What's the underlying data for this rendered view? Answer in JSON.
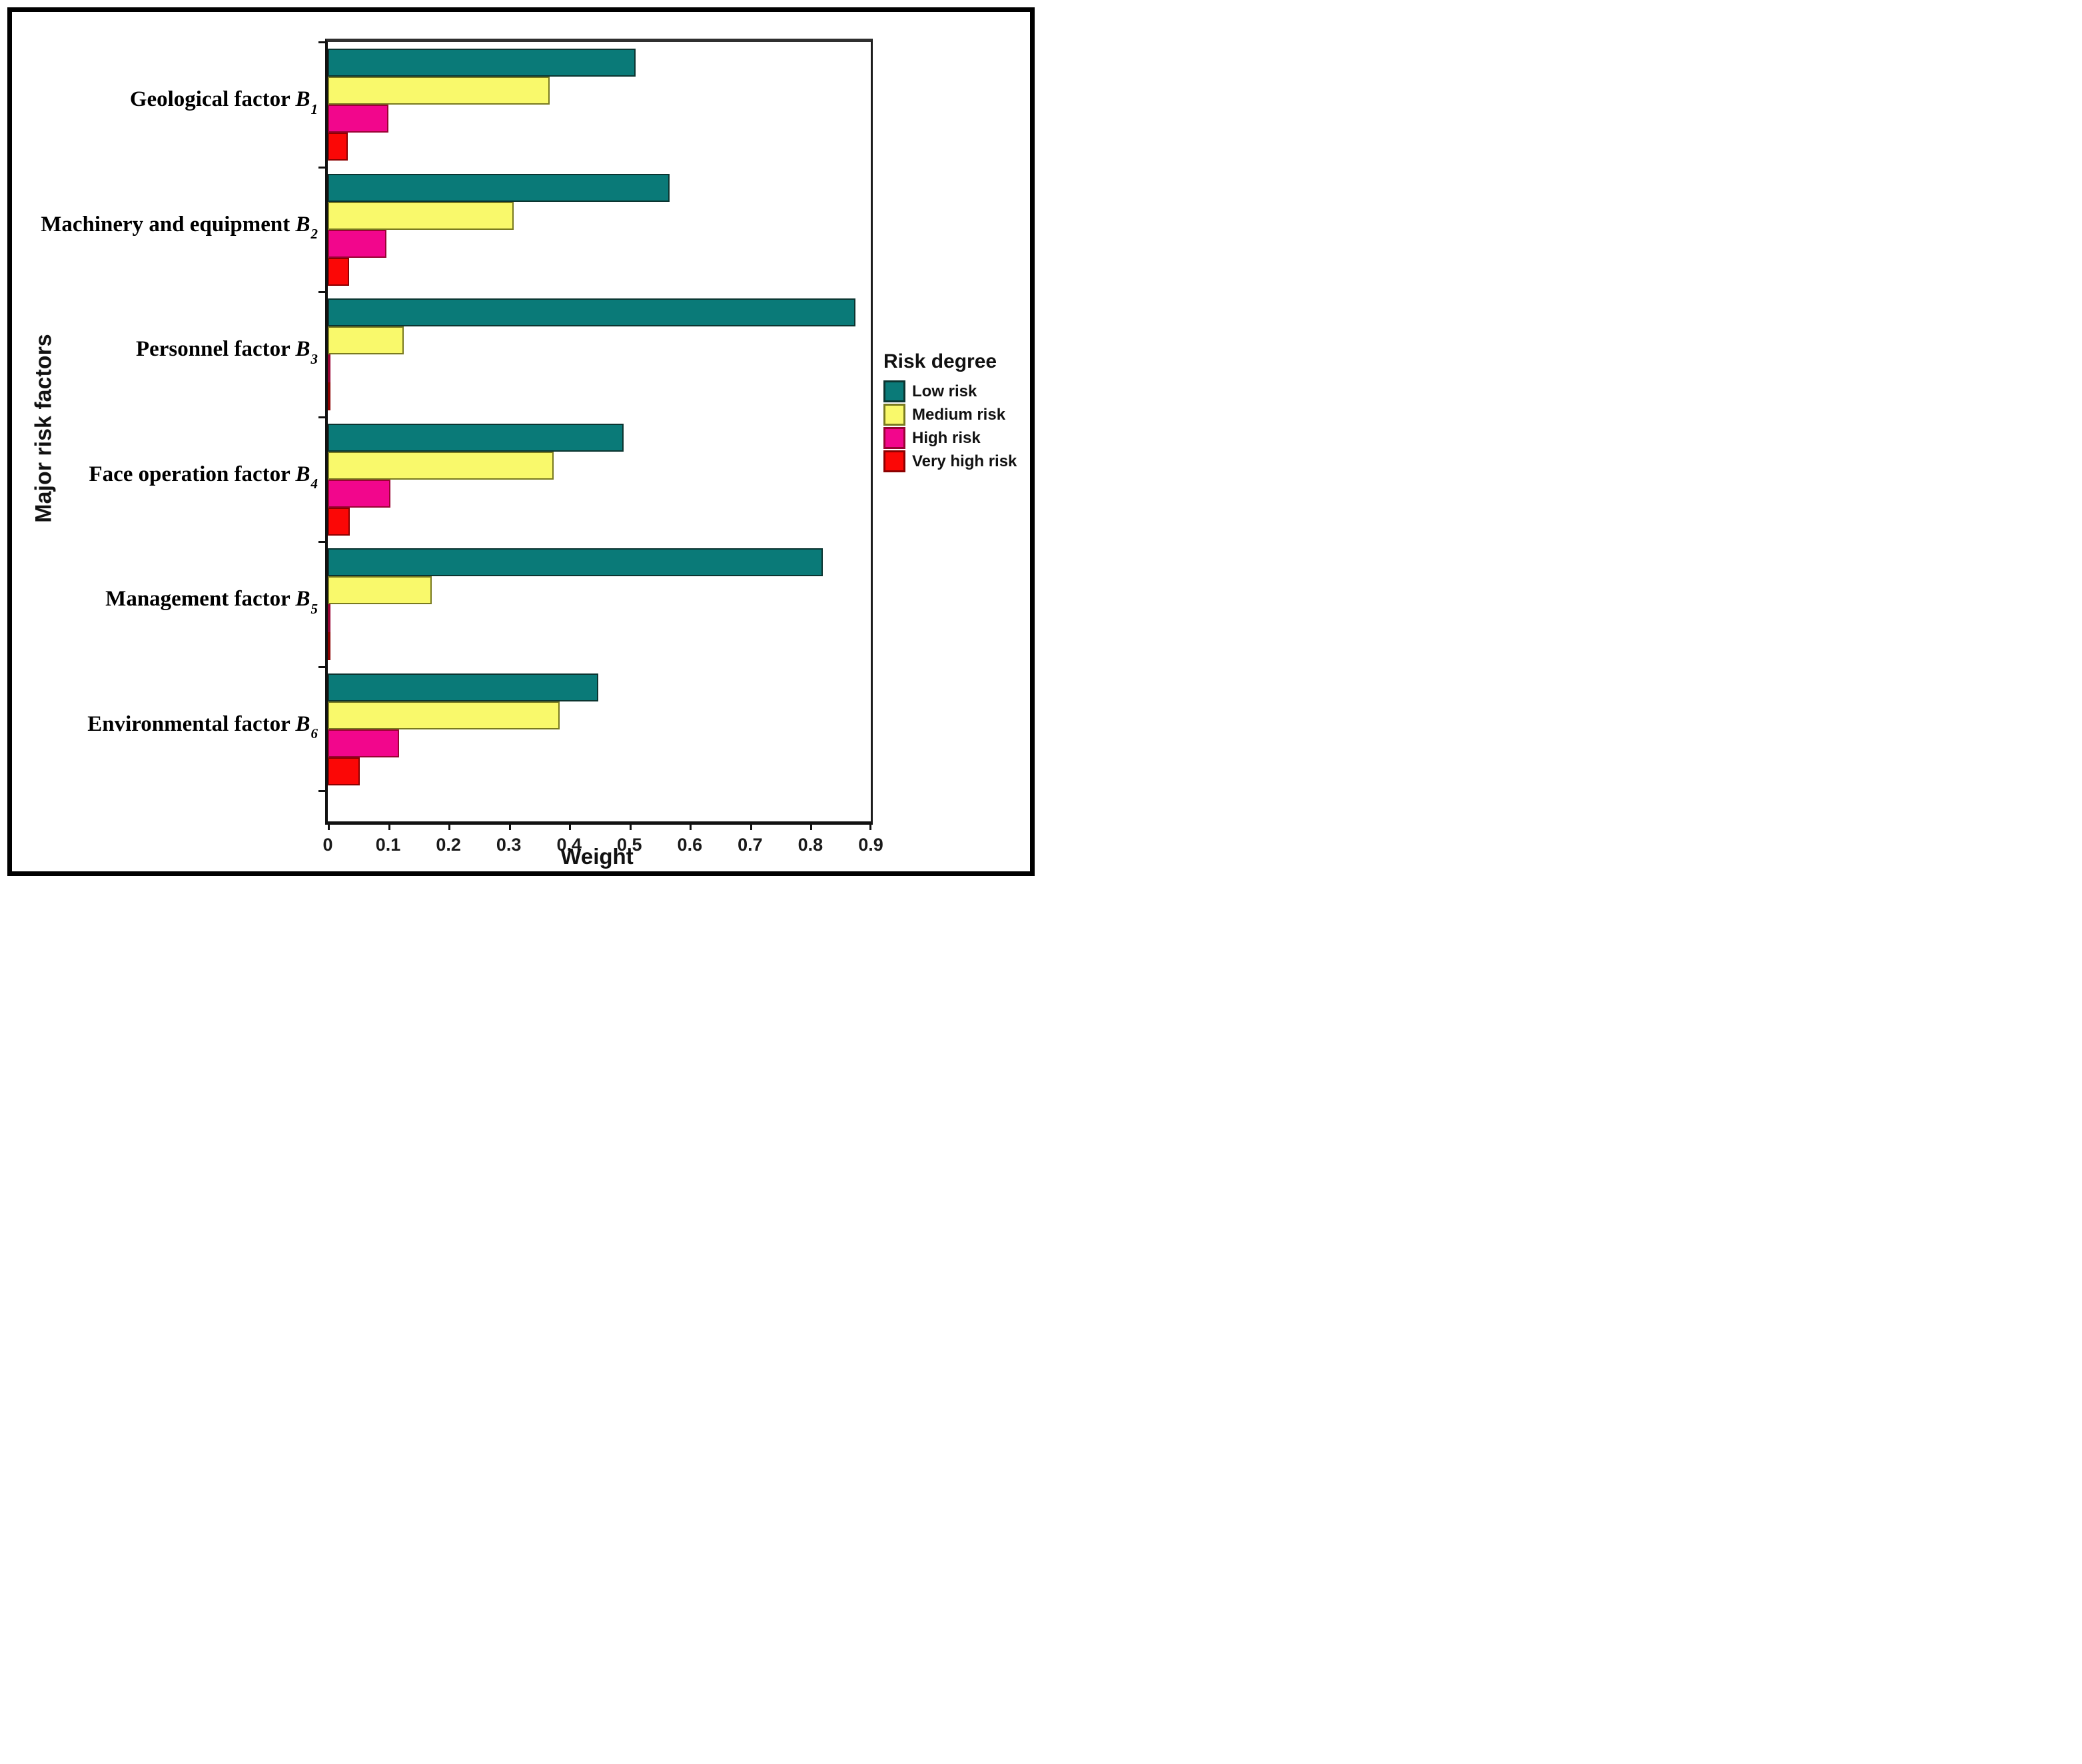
{
  "chart_data": {
    "type": "bar",
    "orientation": "horizontal",
    "title": "",
    "xlabel": "Weight",
    "ylabel": "Major risk factors",
    "xlim": [
      0,
      0.9
    ],
    "xtick_labels": [
      "0",
      "0.1",
      "0.2",
      "0.3",
      "0.4",
      "0.5",
      "0.6",
      "0.7",
      "0.8",
      "0.9"
    ],
    "grid": false,
    "legend_title": "Risk degree",
    "legend_position": "right",
    "categories": [
      {
        "label": "Geological factor",
        "var": "B",
        "sub": "1"
      },
      {
        "label": "Machinery and equipment",
        "var": "B",
        "sub": "2"
      },
      {
        "label": "Personnel factor",
        "var": "B",
        "sub": "3"
      },
      {
        "label": "Face operation factor",
        "var": "B",
        "sub": "4"
      },
      {
        "label": "Management factor",
        "var": "B",
        "sub": "5"
      },
      {
        "label": "Environmental factor",
        "var": "B",
        "sub": "6"
      }
    ],
    "series": [
      {
        "name": "Low risk",
        "fill": "#0a7a78",
        "border": "#0b3430",
        "values": [
          0.51,
          0.567,
          0.875,
          0.49,
          0.82,
          0.448
        ]
      },
      {
        "name": "Medium risk",
        "fill": "#f9f96b",
        "border": "#797a20",
        "values": [
          0.368,
          0.308,
          0.126,
          0.374,
          0.172,
          0.384
        ]
      },
      {
        "name": "High risk",
        "fill": "#f2068c",
        "border": "#990333",
        "values": [
          0.1,
          0.097,
          0.002,
          0.104,
          0.002,
          0.118
        ]
      },
      {
        "name": "Very high risk",
        "fill": "#fb0706",
        "border": "#8b0000",
        "values": [
          0.033,
          0.035,
          0.002,
          0.036,
          0.002,
          0.053
        ]
      }
    ],
    "axis_color": "#111111",
    "background": "#ffffff"
  }
}
